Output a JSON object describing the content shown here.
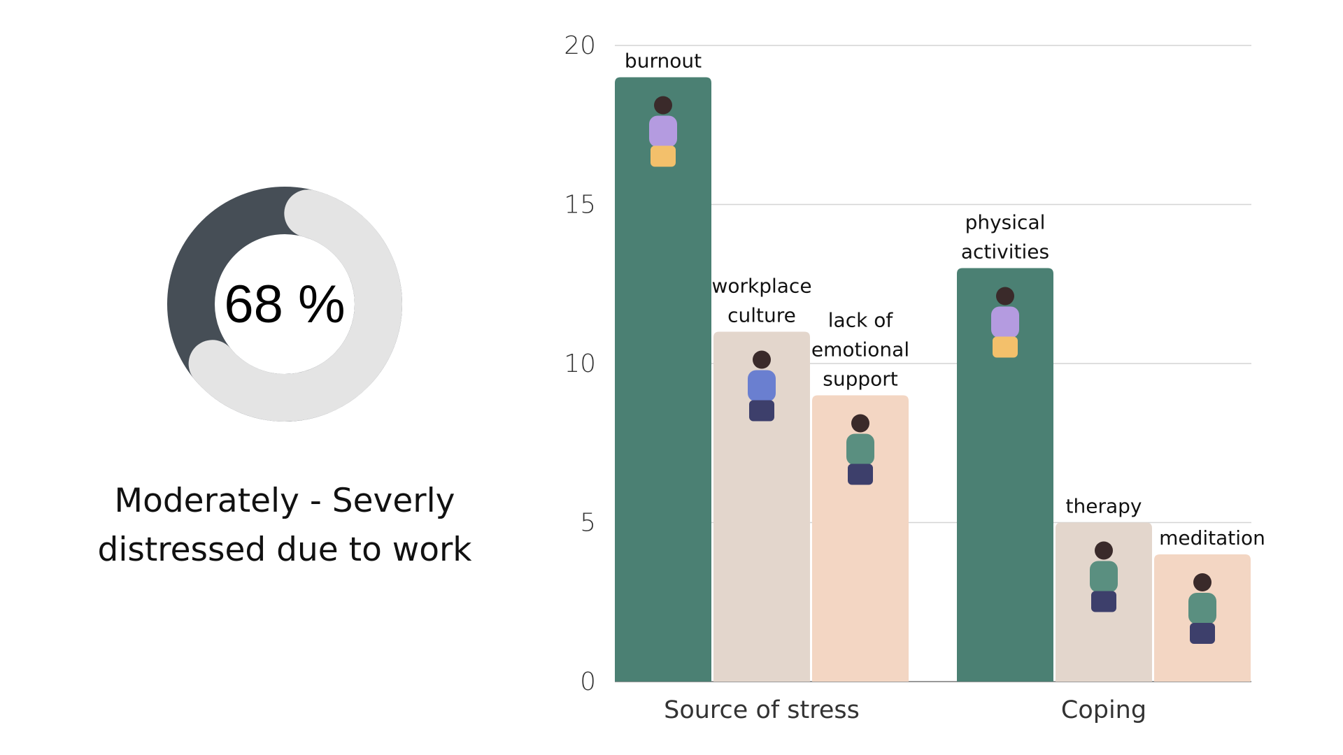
{
  "summary": {
    "percent_value": 68,
    "percent_label": "68 %",
    "caption_line1": "Moderately - Severly",
    "caption_line2": "distressed due to work",
    "colors": {
      "filled": "#464e56",
      "remaining": "#e4e4e4"
    }
  },
  "chart_data": {
    "type": "bar",
    "title": "",
    "xlabel": "",
    "ylabel": "",
    "ylim": [
      0,
      20
    ],
    "yticks": [
      "0",
      "5",
      "10",
      "15",
      "20"
    ],
    "grid": true,
    "groups": [
      {
        "name": "Source of stress",
        "bars": [
          {
            "label": "burnout",
            "value": 19,
            "color": "#4b8073",
            "icon": "burnout-illustration-icon"
          },
          {
            "label": "workplace culture",
            "value": 11,
            "color": "#e3d6cc",
            "icon": "coworkers-illustration-icon"
          },
          {
            "label": "lack of emotional support",
            "value": 9,
            "color": "#f3d6c3",
            "icon": "sad-person-illustration-icon"
          }
        ]
      },
      {
        "name": "Coping",
        "bars": [
          {
            "label": "physical activities",
            "value": 13,
            "color": "#4b8073",
            "icon": "tennis-player-illustration-icon"
          },
          {
            "label": "therapy",
            "value": 5,
            "color": "#e3d6cc",
            "icon": "therapy-session-illustration-icon"
          },
          {
            "label": "meditation",
            "value": 4,
            "color": "#f3d6c3",
            "icon": "meditation-illustration-icon"
          }
        ]
      }
    ]
  }
}
